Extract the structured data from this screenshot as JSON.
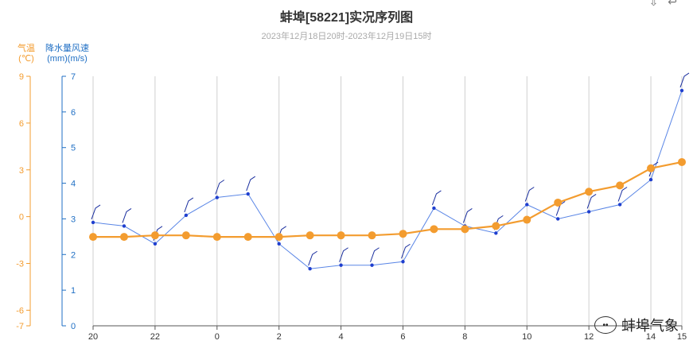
{
  "chart_data": {
    "type": "line",
    "title": "蚌埠[58221]实况序列图",
    "subtitle": "2023年12月18日20时-2023年12月19日15时",
    "temp_axis": {
      "title": "气温",
      "unit": "(℃)",
      "ticks": [
        9,
        6,
        3,
        0,
        -3,
        -6,
        -7
      ],
      "ylim": [
        -7,
        9
      ],
      "color": "#f39c2f"
    },
    "flow_axis": {
      "title": "降水量风速",
      "unit": "(mm)(m/s)",
      "ticks": [
        7,
        6,
        5,
        4,
        3,
        2,
        1,
        0
      ],
      "ylim": [
        0,
        7
      ],
      "color": "#1f6fc4"
    },
    "x_ticks": [
      "20",
      "22",
      "0",
      "2",
      "4",
      "6",
      "8",
      "10",
      "12",
      "14",
      "15"
    ],
    "x_tick_hours": [
      0,
      2,
      4,
      6,
      8,
      10,
      12,
      14,
      16,
      18,
      19
    ],
    "grid": "vertical",
    "series": [
      {
        "kind": "temperature",
        "color": "#f39c2f",
        "values": [
          -1.3,
          -1.3,
          -1.2,
          -1.2,
          -1.3,
          -1.3,
          -1.3,
          -1.2,
          -1.2,
          -1.2,
          -1.1,
          -0.8,
          -0.8,
          -0.6,
          -0.2,
          0.9,
          1.6,
          2.0,
          3.1,
          3.5
        ]
      },
      {
        "kind": "wind_speed",
        "color": "#1f5fd8",
        "values": [
          2.9,
          2.8,
          2.3,
          3.1,
          3.6,
          3.7,
          2.3,
          1.6,
          1.7,
          1.7,
          1.8,
          3.3,
          2.8,
          2.6,
          3.4,
          3.0,
          3.2,
          3.4,
          4.1,
          6.6
        ]
      }
    ]
  },
  "ui": {
    "watermark": "蚌埠气象",
    "tool_icons": [
      "download-icon",
      "back-icon"
    ]
  }
}
